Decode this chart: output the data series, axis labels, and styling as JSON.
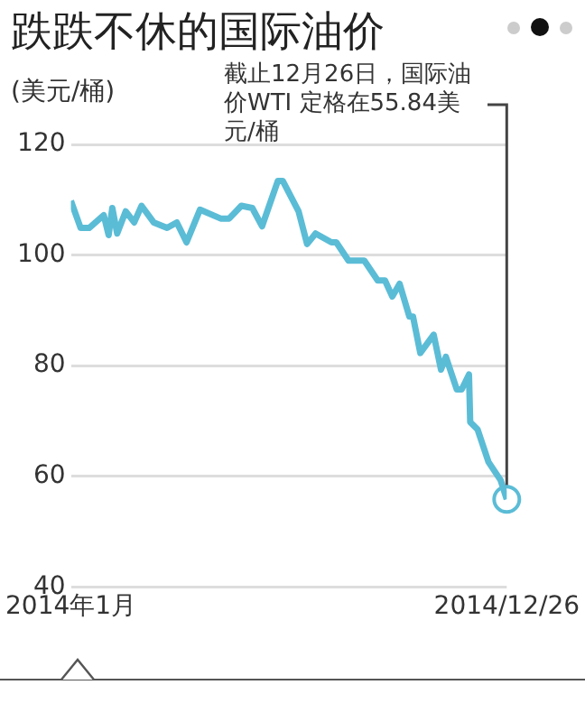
{
  "chart_data": {
    "type": "line",
    "title": "跌跌不休的国际油价",
    "ylabel": "(美元/桶)",
    "x": [
      "2014-01-02",
      "2014-01-10",
      "2014-01-17",
      "2014-01-29",
      "2014-02-02",
      "2014-02-05",
      "2014-02-09",
      "2014-02-16",
      "2014-02-23",
      "2014-03-01",
      "2014-03-11",
      "2014-03-22",
      "2014-03-30",
      "2014-04-07",
      "2014-04-18",
      "2014-05-05",
      "2014-05-12",
      "2014-05-22",
      "2014-05-31",
      "2014-06-08",
      "2014-06-21",
      "2014-06-25",
      "2014-07-08",
      "2014-07-15",
      "2014-07-22",
      "2014-08-04",
      "2014-08-08",
      "2014-08-18",
      "2014-08-31",
      "2014-09-11",
      "2014-09-17",
      "2014-09-23",
      "2014-09-29",
      "2014-10-07",
      "2014-10-10",
      "2014-10-16",
      "2014-10-27",
      "2014-11-02",
      "2014-11-06",
      "2014-11-15",
      "2014-11-19",
      "2014-11-25",
      "2014-11-26",
      "2014-12-02",
      "2014-12-11",
      "2014-12-21",
      "2014-12-26"
    ],
    "series": [
      {
        "color": "#5bbcd6",
        "values": [
          109.8,
          104.9,
          104.9,
          107.2,
          103.6,
          108.5,
          103.9,
          107.9,
          105.9,
          108.9,
          105.9,
          104.9,
          105.9,
          102.3,
          108.2,
          106.6,
          106.6,
          108.9,
          108.5,
          105.2,
          113.4,
          113.4,
          107.9,
          102.0,
          103.9,
          102.3,
          102.3,
          99.0,
          99.0,
          95.4,
          95.4,
          92.5,
          94.8,
          88.9,
          88.9,
          82.3,
          85.6,
          79.3,
          81.6,
          75.7,
          75.7,
          78.4,
          69.8,
          68.5,
          62.6,
          59.3,
          55.84
        ]
      }
    ],
    "xlim": [
      "2014-01-02",
      "2014-12-26"
    ],
    "xticks": [
      {
        "value": "2014-01-02",
        "label": "2014年1月"
      },
      {
        "value": "2014-12-26",
        "label": "2014/12/26"
      }
    ],
    "ylim": [
      40,
      120
    ],
    "yticks": [
      40,
      60,
      80,
      100,
      120
    ],
    "grid": "y",
    "legend": false,
    "marker": "none",
    "line_style": "solid",
    "annotations": [
      "截止12月26日，国际油价WTI 定格在55.84美元/桶"
    ]
  }
}
